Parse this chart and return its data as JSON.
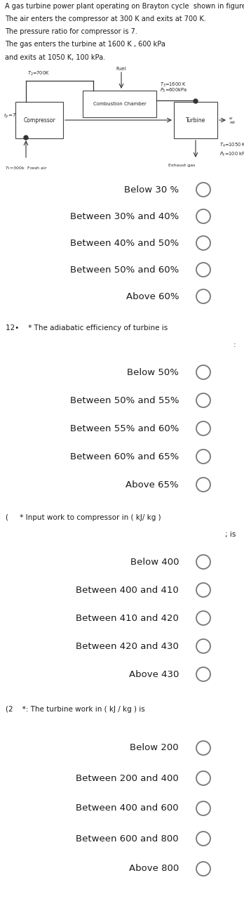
{
  "bg_color": "#f0ede8",
  "white": "#ffffff",
  "text_color": "#1a1a1a",
  "section_line_color": "#d0ccc0",
  "header_text_lines": [
    "A gas turbine power plant operating on Brayton cycle  shown in figure.",
    "The air enters the compressor at 300 K and exits at 700 K.",
    "The pressure ratio for compressor is 7.",
    "The gas enters the turbine at 1600 K , 600 kPa",
    "and exits at 1050 K, 100 kPa."
  ],
  "q0_options": [
    "Below 30 %",
    "Between 30% and 40%",
    "Between 40% and 50%",
    "Between 50% and 60%",
    "Above 60%"
  ],
  "q1_header_line1": "12• ​ ​ ​ * The adiabatic efficiency of turbine is",
  "q1_header_line2": ":",
  "q1_options": [
    "Below 50%",
    "Between 50% and 55%",
    "Between 55% and 60%",
    "Between 60% and 65%",
    "Above 65%"
  ],
  "q2_header_line1": "(    ​​​​ * Input work to compressor in ( kJ/ kg )",
  "q2_header_line2": "; is",
  "q2_options": [
    "Below 400",
    "Between 400 and 410",
    "Between 410 and 420",
    "Between 420 and 430",
    "Above 430"
  ],
  "q3_header_line1": "(2 ​ ​ ​ *: The turbine work in ( kJ / kg ) is",
  "q3_options": [
    "Below 200",
    "Between 200 and 400",
    "Between 400 and 600",
    "Between 600 and 800",
    "Above 800"
  ],
  "circle_edge": "#777777"
}
